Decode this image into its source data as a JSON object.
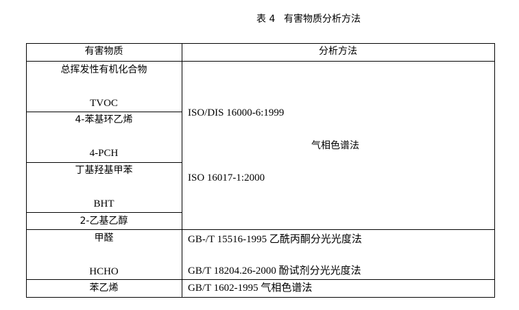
{
  "caption": {
    "label": "表 4",
    "title": "有害物质分析方法"
  },
  "header": {
    "substance": "有害物质",
    "method": "分析方法"
  },
  "rows": [
    {
      "name_cn": "总挥发性有机化合物",
      "name_en": "TVOC"
    },
    {
      "name_cn": "4-苯基环乙烯",
      "name_en": "4-PCH"
    },
    {
      "name_cn": "丁基羟基甲苯",
      "name_en": "BHT"
    },
    {
      "name_cn": "2-乙基乙醇"
    },
    {
      "name_cn": "甲醛",
      "name_en": "HCHO"
    },
    {
      "name_cn": "苯乙烯"
    }
  ],
  "methods": {
    "voc_standard_1": "ISO/DIS 16000-6:1999",
    "voc_method": "气相色谱法",
    "voc_standard_2": "ISO 16017-1:2000",
    "hcho_method_1": "GB-/T 15516-1995 乙酰丙酮分光光度法",
    "hcho_method_2": "GB/T 18204.26-2000  酚试剂分光光度法",
    "styrene_method": "GB/T 1602-1995 气相色谱法"
  }
}
